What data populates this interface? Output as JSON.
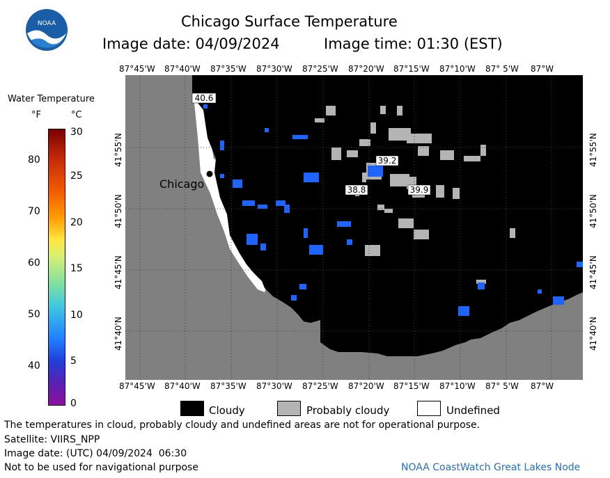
{
  "header": {
    "title": "Chicago Surface Temperature",
    "image_date": "Image date: 04/09/2024",
    "image_time": "Image time: 01:30 (EST)",
    "logo_text": "NOAA"
  },
  "colorbar": {
    "title": "Water Temperature",
    "unit_f": "°F",
    "unit_c": "°C",
    "f_ticks": [
      "80",
      "70",
      "60",
      "50",
      "40"
    ],
    "c_ticks": [
      "30",
      "25",
      "20",
      "15",
      "10",
      "5",
      "0"
    ]
  },
  "map": {
    "lon_labels_top": [
      "87°45'W",
      "87°40'W",
      "87°35'W",
      "87°30'W",
      "87°25'W",
      "87°20'W",
      "87°15'W",
      "87°10'W",
      "87° 5'W",
      "87°W"
    ],
    "lon_labels_bottom": [
      "87°45'W",
      "87°40'W",
      "87°35'W",
      "87°30'W",
      "87°25'W",
      "87°20'W",
      "87°15'W",
      "87°10'W",
      "87° 5'W",
      "87°W"
    ],
    "lat_labels": [
      "41°55'N",
      "41°50'N",
      "41°45'N",
      "41°40'N"
    ],
    "city_label": "Chicago",
    "temp_labels": [
      "40.6",
      "39.2",
      "38.8",
      "39.9"
    ],
    "colors": {
      "land": "#808080",
      "cloudy": "#000000",
      "probably_cloudy": "#b4b4b4",
      "undefined": "#ffffff",
      "water_cool": "#1e64ff"
    }
  },
  "legend": {
    "cloudy": "Cloudy",
    "probably_cloudy": "Probably cloudy",
    "undefined": "Undefined"
  },
  "footer": {
    "disclaimer": "The temperatures in cloud, probably cloudy and undefined areas are not for operational purpose.",
    "satellite": "Satellite: VIIRS_NPP",
    "utc_date": "Image date: (UTC) 04/09/2024  06:30",
    "nav_warning": "Not to be used for navigational purpose",
    "credit": "NOAA CoastWatch Great Lakes Node"
  }
}
